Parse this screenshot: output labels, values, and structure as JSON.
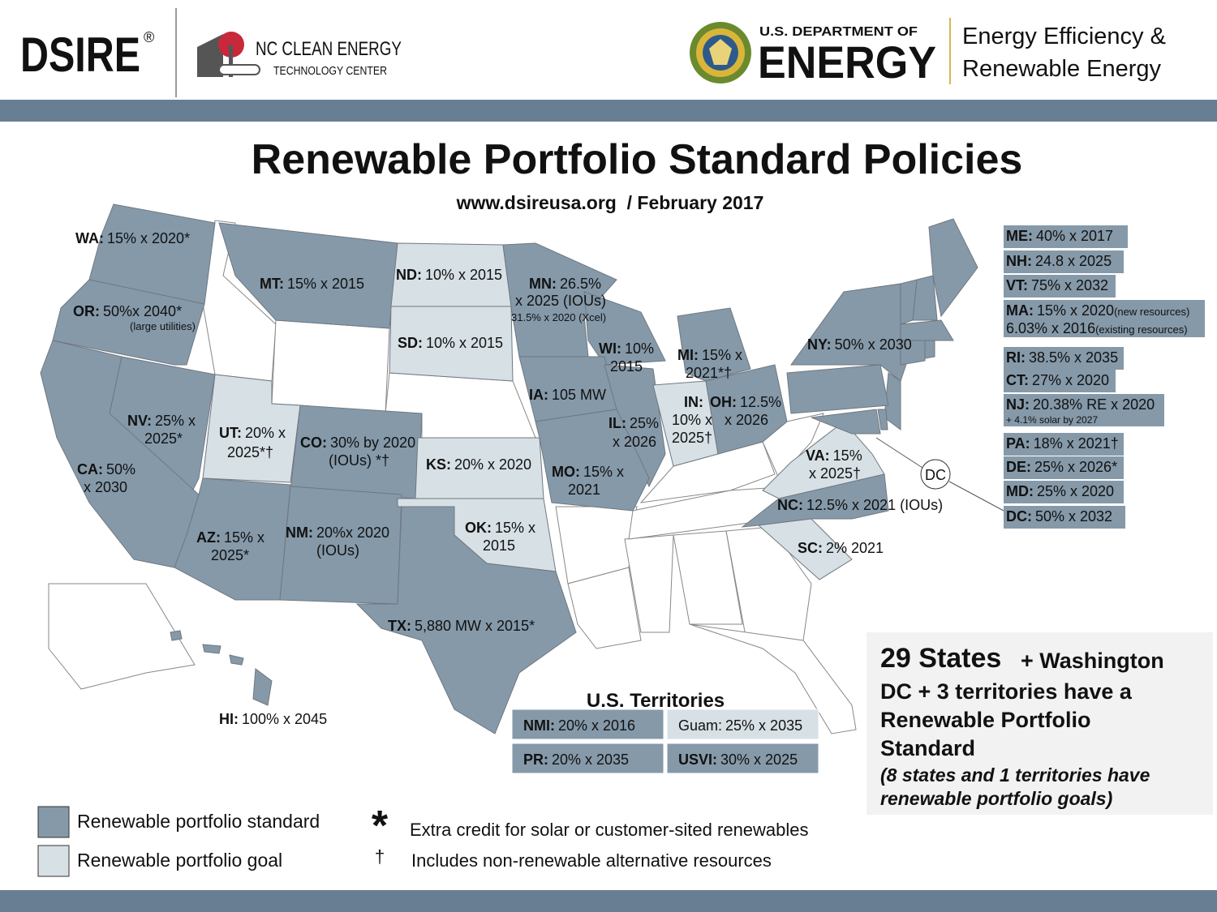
{
  "header": {
    "dsire": "DSIRE",
    "registered": "®",
    "nc_line1": "NC CLEAN ENERGY",
    "nc_line2": "TECHNOLOGY CENTER",
    "doe_line1": "U.S. DEPARTMENT OF",
    "doe_line2": "ENERGY",
    "eere_line1": "Energy Efficiency &",
    "eere_line2": "Renewable Energy"
  },
  "title": "Renewable Portfolio Standard Policies",
  "subtitle": "www.dsireusa.org  / February 2017",
  "colors": {
    "standard": "#8599a9",
    "goal": "#d6e0e5"
  },
  "map_states": [
    {
      "abbr": "WA:",
      "lines": [
        "15% x 2020*"
      ],
      "type": "standard"
    },
    {
      "abbr": "MT:",
      "lines": [
        "15% x 2015"
      ],
      "type": "standard"
    },
    {
      "abbr": "OR:",
      "lines": [
        "50%x 2040*"
      ],
      "note": "(large utilities)",
      "type": "standard"
    },
    {
      "abbr": "ND:",
      "lines": [
        "10% x 2015"
      ],
      "type": "goal"
    },
    {
      "abbr": "SD:",
      "lines": [
        "10% x 2015"
      ],
      "type": "goal"
    },
    {
      "abbr": "MN:",
      "lines": [
        "26.5%",
        "x 2025 (IOUs)"
      ],
      "note": "31.5% x 2020 (Xcel)",
      "type": "standard"
    },
    {
      "abbr": "WI:",
      "lines": [
        "10%",
        "2015"
      ],
      "type": "standard"
    },
    {
      "abbr": "MI:",
      "lines": [
        "15% x",
        "2021*†"
      ],
      "type": "standard"
    },
    {
      "abbr": "NY:",
      "lines": [
        "50%  x 2030"
      ],
      "type": "standard"
    },
    {
      "abbr": "IA:",
      "lines": [
        "105 MW"
      ],
      "type": "standard"
    },
    {
      "abbr": "IL:",
      "lines": [
        "25%",
        "x 2026"
      ],
      "type": "standard"
    },
    {
      "abbr": "IN:",
      "lines": [
        "",
        "10% x",
        "2025†"
      ],
      "type": "goal"
    },
    {
      "abbr": "OH:",
      "lines": [
        "12.5%",
        "x 2026"
      ],
      "type": "standard"
    },
    {
      "abbr": "NV:",
      "lines": [
        "25% x",
        "2025*"
      ],
      "type": "standard"
    },
    {
      "abbr": "UT:",
      "lines": [
        "20% x",
        "2025*†"
      ],
      "type": "goal"
    },
    {
      "abbr": "CO:",
      "lines": [
        "30% by 2020",
        "(IOUs) *†"
      ],
      "type": "standard"
    },
    {
      "abbr": "KS:",
      "lines": [
        "20% x 2020"
      ],
      "type": "goal"
    },
    {
      "abbr": "MO:",
      "lines": [
        "15% x",
        "2021"
      ],
      "type": "standard"
    },
    {
      "abbr": "VA:",
      "lines": [
        "15%",
        "x 2025†"
      ],
      "type": "goal"
    },
    {
      "abbr": "CA:",
      "lines": [
        "50%",
        "x 2030"
      ],
      "type": "standard"
    },
    {
      "abbr": "NC:",
      "lines": [
        "12.5% x 2021 (IOUs)"
      ],
      "type": "standard"
    },
    {
      "abbr": "AZ:",
      "lines": [
        "15% x",
        "2025*"
      ],
      "type": "standard"
    },
    {
      "abbr": "NM:",
      "lines": [
        "20%x 2020",
        "(IOUs)"
      ],
      "type": "standard"
    },
    {
      "abbr": "OK:",
      "lines": [
        "15% x",
        "2015"
      ],
      "type": "goal"
    },
    {
      "abbr": "SC:",
      "lines": [
        "2% 2021"
      ],
      "type": "goal"
    },
    {
      "abbr": "TX:",
      "lines": [
        "5,880 MW  x 2015*"
      ],
      "type": "standard"
    },
    {
      "abbr": "HI:",
      "lines": [
        "100% x 2045"
      ],
      "type": "standard"
    }
  ],
  "dc_marker": "DC",
  "northeast_panel": [
    {
      "abbr": "ME:",
      "lines": [
        "40% x 2017"
      ],
      "type": "standard"
    },
    {
      "abbr": "NH:",
      "lines": [
        "24.8 x 2025"
      ],
      "type": "standard"
    },
    {
      "abbr": "VT:",
      "lines": [
        "75% x 2032"
      ],
      "type": "standard"
    },
    {
      "abbr": "MA:",
      "lines": [
        "15% x 2020",
        "6.03% x 2016"
      ],
      "notes": [
        "(new resources)",
        "(existing resources)"
      ],
      "type": "standard"
    },
    {
      "abbr": "RI:",
      "lines": [
        "38.5% x 2035"
      ],
      "type": "standard"
    },
    {
      "abbr": "CT:",
      "lines": [
        "27% x 2020"
      ],
      "type": "standard"
    },
    {
      "abbr": "NJ:",
      "lines": [
        "20.38% RE x 2020"
      ],
      "subnote": "+ 4.1% solar by 2027",
      "type": "standard"
    },
    {
      "abbr": "PA:",
      "lines": [
        "18% x 2021†"
      ],
      "type": "standard"
    },
    {
      "abbr": "DE:",
      "lines": [
        "25% x 2026*"
      ],
      "type": "standard"
    },
    {
      "abbr": "MD:",
      "lines": [
        "25% x 2020"
      ],
      "type": "standard"
    },
    {
      "abbr": "DC:",
      "lines": [
        "50% x 2032"
      ],
      "type": "standard"
    }
  ],
  "territories": {
    "title": "U.S. Territories",
    "items": [
      {
        "abbr": "NMI:",
        "text": "20% x 2016",
        "type": "standard"
      },
      {
        "abbr": "Guam:",
        "text": "25% x 2035",
        "type": "goal"
      },
      {
        "abbr": "PR:",
        "text": "20% x 2035",
        "type": "standard"
      },
      {
        "abbr": "USVI:",
        "text": "30% x 2025",
        "type": "standard"
      }
    ]
  },
  "summary": {
    "count": "29 States",
    "count_tail": "+ Washington",
    "lines": [
      "DC + 3 territories have a",
      "Renewable Portfolio",
      "Standard"
    ],
    "goal_lines": [
      "(8 states and 1 territories have",
      "renewable portfolio goals)"
    ]
  },
  "legend": {
    "items": [
      {
        "type": "standard",
        "label": "Renewable portfolio standard"
      },
      {
        "type": "goal",
        "label": "Renewable portfolio goal"
      }
    ],
    "notes": [
      {
        "symbol": "*",
        "text": "Extra credit for solar or customer-sited renewables"
      },
      {
        "symbol": "†",
        "text": "Includes non-renewable alternative resources"
      }
    ]
  }
}
